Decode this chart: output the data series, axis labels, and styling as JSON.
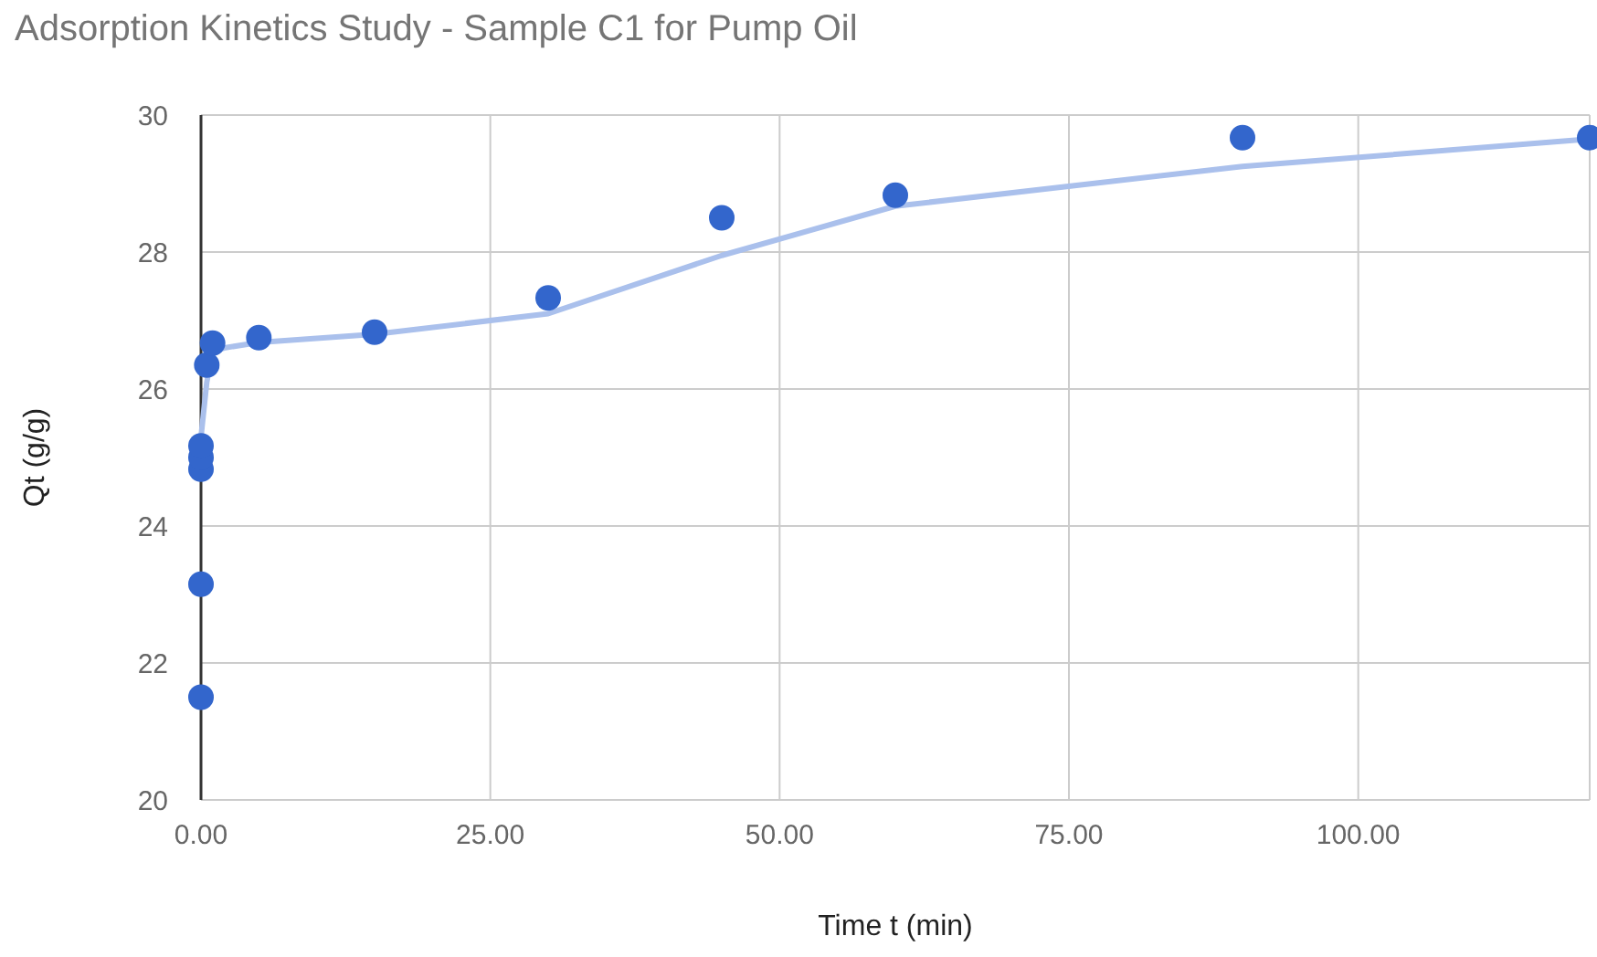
{
  "chart_data": {
    "type": "scatter",
    "title": "Adsorption Kinetics Study - Sample C1 for Pump Oil",
    "xlabel": "Time t (min)",
    "ylabel": "Qt (g/g)",
    "xlim": [
      0,
      120
    ],
    "xticks": [
      {
        "value": 0,
        "label": "0.00"
      },
      {
        "value": 25,
        "label": "25.00"
      },
      {
        "value": 50,
        "label": "50.00"
      },
      {
        "value": 75,
        "label": "75.00"
      },
      {
        "value": 100,
        "label": "100.00"
      }
    ],
    "ylim": [
      20,
      30
    ],
    "yticks": [
      20,
      22,
      24,
      26,
      28,
      30
    ],
    "grid": true,
    "marker": "circle",
    "series": [
      {
        "type": "line",
        "color": "#aac0ec",
        "marker": "none",
        "line_style": "solid",
        "x": [
          0,
          0.5,
          1,
          2,
          5,
          15,
          30,
          45,
          60,
          90,
          120
        ],
        "values": [
          25.3,
          26.1,
          26.55,
          26.6,
          26.68,
          26.8,
          27.1,
          27.95,
          28.67,
          29.25,
          29.65
        ]
      },
      {
        "color": "#3366cc",
        "x": [
          0,
          0,
          0,
          0,
          0,
          0.5,
          1,
          5,
          15,
          30,
          45,
          60,
          90,
          120
        ],
        "values": [
          21.5,
          23.15,
          24.83,
          25.0,
          25.17,
          26.35,
          26.67,
          26.75,
          26.83,
          27.33,
          28.5,
          28.83,
          29.67,
          29.67
        ]
      }
    ]
  }
}
